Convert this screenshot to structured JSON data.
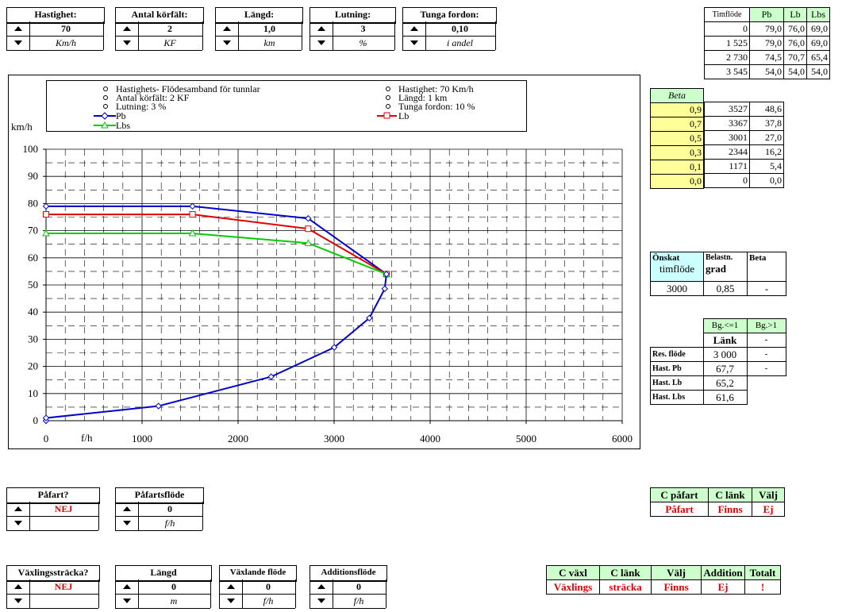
{
  "inputs": [
    {
      "label": "Hastighet:",
      "value": "70",
      "unit": "Km/h"
    },
    {
      "label": "Antal körfält:",
      "value": "2",
      "unit": "KF"
    },
    {
      "label": "Längd:",
      "value": "1,0",
      "unit": "km"
    },
    {
      "label": "Lutning:",
      "value": "3",
      "unit": "%"
    },
    {
      "label": "Tunga fordon:",
      "value": "0,10",
      "unit": "i andel"
    }
  ],
  "flow_table": {
    "headers": [
      "Timflöde",
      "Pb",
      "Lb",
      "Lbs"
    ],
    "rows": [
      [
        "0",
        "79,0",
        "76,0",
        "69,0"
      ],
      [
        "1 525",
        "79,0",
        "76,0",
        "69,0"
      ],
      [
        "2 730",
        "74,5",
        "70,7",
        "65,4"
      ],
      [
        "3 545",
        "54,0",
        "54,0",
        "54,0"
      ]
    ]
  },
  "beta_table": {
    "header": "Beta",
    "rows": [
      [
        "0,9",
        "3527",
        "48,6"
      ],
      [
        "0,7",
        "3367",
        "37,8"
      ],
      [
        "0,5",
        "3001",
        "27,0"
      ],
      [
        "0,3",
        "2344",
        "16,2"
      ],
      [
        "0,1",
        "1171",
        "5,4"
      ],
      [
        "0,0",
        "0",
        "0,0"
      ]
    ]
  },
  "desired": {
    "h1": "Önskat",
    "h1b": "timflöde",
    "h2": "Belastn.",
    "h2b": "grad",
    "h3": "Beta",
    "v1": "3000",
    "v2": "0,85",
    "v3": "-"
  },
  "results": {
    "h1": "Bg.<=1",
    "h2": "Bg.>1",
    "sub1": "Länk",
    "sub2": "-",
    "rows": [
      [
        "Res. flöde",
        "3 000",
        "-"
      ],
      [
        "Hast. Pb",
        "67,7",
        "-"
      ],
      [
        "Hast. Lb",
        "65,2",
        ""
      ],
      [
        "Hast. Lbs",
        "61,6",
        ""
      ]
    ]
  },
  "legend": {
    "left": [
      "Hastighets- Flödesamband för tunnlar",
      "Antal körfält:  2  KF",
      "Lutning:  3  %"
    ],
    "right": [
      "Hastighet:  70  Km/h",
      "Längd:  1  km",
      "Tunga fordon:  10  %"
    ],
    "pb": "Pb",
    "lb": "Lb",
    "lbs": "Lbs"
  },
  "chart_data": {
    "type": "line",
    "ylabel": "km/h",
    "xlabel": "f/h",
    "xlim": [
      0,
      6000
    ],
    "ylim": [
      0,
      100
    ],
    "xticks": [
      "0",
      "1000",
      "2000",
      "3000",
      "4000",
      "5000",
      "6000"
    ],
    "yticks": [
      "0",
      "10",
      "20",
      "30",
      "40",
      "50",
      "60",
      "70",
      "80",
      "90",
      "100"
    ],
    "grid": true,
    "series": [
      {
        "name": "Pb",
        "color": "#0000cc",
        "marker": "diamond",
        "x": [
          0,
          1525,
          2730,
          3545
        ],
        "y": [
          79,
          79,
          74.5,
          54
        ]
      },
      {
        "name": "Lb",
        "color": "#e00000",
        "marker": "square",
        "x": [
          0,
          1525,
          2730,
          3545
        ],
        "y": [
          76,
          76,
          70.7,
          54
        ]
      },
      {
        "name": "Lbs",
        "color": "#00cc00",
        "marker": "triangle",
        "x": [
          0,
          1525,
          2730,
          3545
        ],
        "y": [
          69,
          69,
          65.4,
          54
        ]
      },
      {
        "name": "",
        "color": "#0000cc",
        "marker": "diamond",
        "x": [
          0,
          0,
          1171,
          2344,
          3001,
          3367,
          3527,
          3545
        ],
        "y": [
          0,
          1,
          5.4,
          16.2,
          27.0,
          37.8,
          48.6,
          54
        ]
      }
    ]
  },
  "pafart": {
    "label": "Påfart?",
    "value": "NEJ"
  },
  "pafartsflode": {
    "label": "Påfartsflöde",
    "value": "0",
    "unit": "f/h"
  },
  "cpafart": {
    "headers": [
      "C påfart",
      "C länk",
      "Välj"
    ],
    "values": [
      "Påfart",
      "Finns",
      "Ej"
    ]
  },
  "vaxlingsstracka": {
    "label": "Växlingssträcka?",
    "value": "NEJ"
  },
  "langd2": {
    "label": "Längd",
    "value": "0",
    "unit": "m"
  },
  "vaxlande": {
    "label": "Växlande flöde",
    "value": "0",
    "unit": "f/h"
  },
  "additions": {
    "label": "Additionsflöde",
    "value": "0",
    "unit": "f/h"
  },
  "cvaxl": {
    "headers": [
      "C växl",
      "C länk",
      "Välj",
      "Addition",
      "Totalt"
    ],
    "values": [
      "Växlings",
      "sträcka",
      "Finns",
      "Ej",
      "!"
    ]
  }
}
